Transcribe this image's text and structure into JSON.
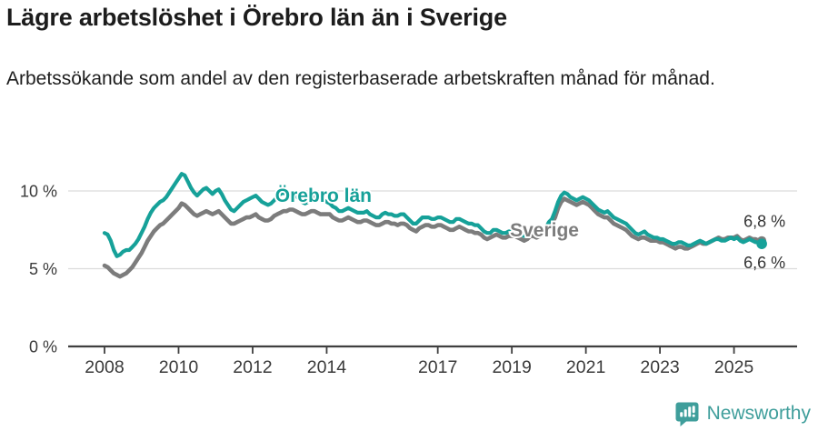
{
  "header": {
    "title": "Lägre arbetslöshet i Örebro län än i Sverige",
    "subtitle": "Arbetssökande som andel av den registerbaserade arbetskraften månad för månad."
  },
  "footer": {
    "brand": "Newsworthy",
    "brand_color": "#3f9e9b",
    "logo_icon": "speech-bubble-bar-chart-icon"
  },
  "chart_data": {
    "type": "line",
    "title": "Lägre arbetslöshet i Örebro län än i Sverige",
    "subtitle": "Arbetssökande som andel av den registerbaserade arbetskraften månad för månad.",
    "unit": "%",
    "grid": "horizontal",
    "ylim": [
      0,
      12.3
    ],
    "x_axis": {
      "start_year": 2008,
      "points_per_year": 12,
      "x_start": "2008-01",
      "x_end": "2025-10",
      "ticks": [
        {
          "year": 2008,
          "label": "2008"
        },
        {
          "year": 2010,
          "label": "2010"
        },
        {
          "year": 2012,
          "label": "2012"
        },
        {
          "year": 2014,
          "label": "2014"
        },
        {
          "year": 2017,
          "label": "2017"
        },
        {
          "year": 2019,
          "label": "2019"
        },
        {
          "year": 2021,
          "label": "2021"
        },
        {
          "year": 2023,
          "label": "2023"
        },
        {
          "year": 2025,
          "label": "2025"
        }
      ]
    },
    "y_axis": {
      "ticks": [
        {
          "value": 0,
          "label": "0 %"
        },
        {
          "value": 5,
          "label": "5 %"
        },
        {
          "value": 10,
          "label": "10 %"
        }
      ]
    },
    "series": [
      {
        "name": "Sverige",
        "color": "#7c7c7c",
        "end_value_label": "6,8 %",
        "end_label_position": "above",
        "label_anchor": {
          "year": 2018.95,
          "value": 7.08
        },
        "values": [
          5.2,
          5.1,
          4.9,
          4.7,
          4.6,
          4.5,
          4.6,
          4.7,
          4.9,
          5.1,
          5.4,
          5.7,
          6.0,
          6.4,
          6.8,
          7.1,
          7.4,
          7.6,
          7.8,
          7.9,
          8.1,
          8.3,
          8.5,
          8.7,
          8.9,
          9.2,
          9.1,
          8.9,
          8.7,
          8.5,
          8.4,
          8.5,
          8.6,
          8.7,
          8.6,
          8.5,
          8.6,
          8.7,
          8.5,
          8.3,
          8.1,
          7.9,
          7.9,
          8.0,
          8.1,
          8.2,
          8.3,
          8.3,
          8.4,
          8.5,
          8.3,
          8.2,
          8.1,
          8.1,
          8.2,
          8.4,
          8.5,
          8.6,
          8.7,
          8.7,
          8.8,
          8.8,
          8.7,
          8.6,
          8.5,
          8.5,
          8.6,
          8.7,
          8.7,
          8.6,
          8.5,
          8.5,
          8.5,
          8.5,
          8.3,
          8.2,
          8.1,
          8.1,
          8.2,
          8.3,
          8.2,
          8.1,
          8.0,
          8.0,
          8.1,
          8.1,
          8.0,
          7.9,
          7.8,
          7.8,
          7.9,
          8.0,
          8.0,
          7.9,
          7.9,
          7.8,
          7.9,
          7.9,
          7.8,
          7.6,
          7.5,
          7.4,
          7.6,
          7.7,
          7.8,
          7.8,
          7.7,
          7.7,
          7.8,
          7.8,
          7.7,
          7.6,
          7.5,
          7.5,
          7.6,
          7.7,
          7.6,
          7.5,
          7.4,
          7.4,
          7.3,
          7.3,
          7.2,
          7.0,
          6.9,
          7.0,
          7.1,
          7.2,
          7.1,
          7.0,
          7.0,
          7.1,
          7.1,
          7.1,
          7.0,
          6.9,
          6.8,
          6.9,
          7.1,
          7.1,
          7.0,
          7.1,
          7.2,
          7.4,
          7.7,
          7.9,
          8.3,
          8.9,
          9.3,
          9.5,
          9.4,
          9.3,
          9.2,
          9.1,
          9.2,
          9.3,
          9.2,
          9.1,
          8.9,
          8.7,
          8.5,
          8.4,
          8.3,
          8.3,
          8.1,
          7.9,
          7.8,
          7.7,
          7.6,
          7.5,
          7.3,
          7.1,
          7.0,
          6.9,
          7.0,
          7.0,
          6.9,
          6.8,
          6.8,
          6.8,
          6.7,
          6.7,
          6.6,
          6.5,
          6.4,
          6.3,
          6.4,
          6.4,
          6.3,
          6.3,
          6.4,
          6.5,
          6.6,
          6.7,
          6.6,
          6.6,
          6.7,
          6.8,
          6.9,
          7.0,
          6.9,
          6.9,
          7.0,
          7.0,
          7.0,
          7.1,
          6.9,
          6.8,
          6.9,
          7.0,
          6.9,
          6.9,
          6.8,
          6.8
        ]
      },
      {
        "name": "Örebro län",
        "color": "#16a199",
        "end_value_label": "6,6 %",
        "end_label_position": "below",
        "label_anchor": {
          "year": 2012.61,
          "value": 9.3
        },
        "values": [
          7.3,
          7.2,
          6.8,
          6.2,
          5.8,
          5.9,
          6.1,
          6.2,
          6.2,
          6.4,
          6.6,
          6.9,
          7.3,
          7.7,
          8.2,
          8.6,
          8.9,
          9.1,
          9.3,
          9.4,
          9.6,
          9.9,
          10.2,
          10.5,
          10.8,
          11.1,
          11.0,
          10.6,
          10.2,
          9.9,
          9.7,
          9.9,
          10.1,
          10.2,
          10.0,
          9.8,
          10.0,
          10.1,
          9.8,
          9.4,
          9.1,
          8.8,
          8.7,
          8.9,
          9.1,
          9.3,
          9.4,
          9.5,
          9.6,
          9.7,
          9.5,
          9.3,
          9.2,
          9.1,
          9.2,
          9.4,
          9.6,
          9.8,
          9.9,
          9.8,
          9.8,
          9.9,
          9.7,
          9.5,
          9.3,
          9.2,
          9.3,
          9.5,
          9.6,
          9.5,
          9.4,
          9.4,
          9.3,
          9.2,
          9.0,
          8.9,
          8.7,
          8.7,
          8.8,
          8.9,
          8.8,
          8.7,
          8.6,
          8.6,
          8.6,
          8.7,
          8.5,
          8.4,
          8.3,
          8.3,
          8.5,
          8.6,
          8.5,
          8.5,
          8.4,
          8.4,
          8.5,
          8.5,
          8.3,
          8.1,
          7.9,
          7.9,
          8.1,
          8.3,
          8.3,
          8.3,
          8.2,
          8.2,
          8.3,
          8.3,
          8.2,
          8.1,
          8.0,
          8.0,
          8.2,
          8.2,
          8.1,
          8.0,
          7.9,
          7.9,
          7.8,
          7.8,
          7.6,
          7.4,
          7.3,
          7.3,
          7.5,
          7.5,
          7.4,
          7.3,
          7.3,
          7.4,
          7.4,
          7.4,
          7.3,
          7.2,
          7.1,
          7.2,
          7.4,
          7.4,
          7.3,
          7.3,
          7.4,
          7.6,
          8.0,
          8.2,
          8.7,
          9.3,
          9.7,
          9.9,
          9.8,
          9.6,
          9.5,
          9.4,
          9.5,
          9.6,
          9.5,
          9.4,
          9.2,
          9.0,
          8.8,
          8.7,
          8.6,
          8.7,
          8.5,
          8.3,
          8.2,
          8.1,
          8.0,
          7.9,
          7.7,
          7.5,
          7.3,
          7.2,
          7.3,
          7.4,
          7.2,
          7.1,
          7.0,
          7.0,
          6.9,
          6.9,
          6.8,
          6.7,
          6.6,
          6.6,
          6.7,
          6.7,
          6.6,
          6.5,
          6.5,
          6.6,
          6.7,
          6.8,
          6.7,
          6.6,
          6.7,
          6.8,
          6.9,
          6.9,
          6.8,
          6.8,
          6.9,
          7.0,
          6.9,
          7.0,
          6.8,
          6.7,
          6.8,
          6.9,
          6.8,
          6.7,
          6.7,
          6.6
        ]
      }
    ],
    "legend_position": "inline-labels",
    "colors": {
      "orebro": "#16a199",
      "sverige": "#7c7c7c",
      "grid": "#dcdcdc",
      "axis": "#3f3f3f",
      "tick_text": "#3a3a3a",
      "end_label_text": "#333333"
    }
  }
}
